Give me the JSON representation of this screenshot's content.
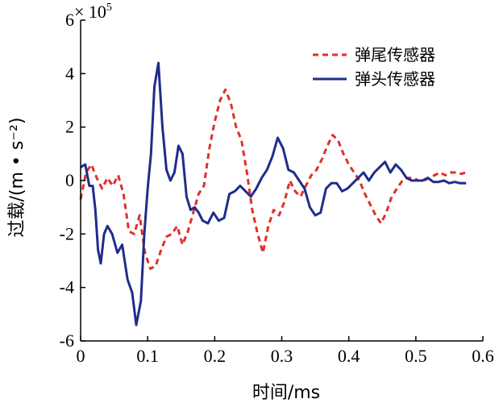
{
  "chart_data": {
    "type": "line",
    "xlabel": "时间/ms",
    "ylabel": "过载/(m • s⁻²)",
    "y_multiplier": "× 10",
    "y_multiplier_exp": "5",
    "xlim": [
      0,
      0.6
    ],
    "ylim": [
      -6,
      6
    ],
    "x_ticks": [
      "0",
      "0.1",
      "0.2",
      "0.3",
      "0.4",
      "0.5",
      "0.6"
    ],
    "y_ticks": [
      "6",
      "4",
      "2",
      "0",
      "-2",
      "-4",
      "-6"
    ],
    "grid": false,
    "legend_position": "top-right",
    "series": [
      {
        "name": "弹尾传感器",
        "color": "#e0302a",
        "dash": "dashed",
        "x": [
          0,
          0.008,
          0.016,
          0.024,
          0.032,
          0.04,
          0.048,
          0.056,
          0.064,
          0.072,
          0.08,
          0.088,
          0.096,
          0.104,
          0.112,
          0.12,
          0.128,
          0.136,
          0.144,
          0.152,
          0.16,
          0.168,
          0.176,
          0.184,
          0.192,
          0.2,
          0.208,
          0.216,
          0.224,
          0.232,
          0.24,
          0.248,
          0.256,
          0.264,
          0.272,
          0.28,
          0.288,
          0.296,
          0.304,
          0.312,
          0.32,
          0.328,
          0.336,
          0.344,
          0.352,
          0.36,
          0.368,
          0.376,
          0.384,
          0.392,
          0.4,
          0.408,
          0.416,
          0.424,
          0.432,
          0.44,
          0.448,
          0.456,
          0.464,
          0.472,
          0.48,
          0.488,
          0.496,
          0.504,
          0.512,
          0.52,
          0.528,
          0.536,
          0.544,
          0.552,
          0.56,
          0.568,
          0.575
        ],
        "y": [
          -0.7,
          0.3,
          0.6,
          0.1,
          -0.3,
          0.1,
          -0.2,
          0.2,
          -0.5,
          -1.9,
          -2.0,
          -1.3,
          -2.7,
          -3.3,
          -3.2,
          -2.6,
          -2.1,
          -2.0,
          -1.7,
          -2.4,
          -1.9,
          -1.2,
          -0.5,
          -0.2,
          1.2,
          2.2,
          3.0,
          3.4,
          2.9,
          2.0,
          1.5,
          0.3,
          -1.1,
          -2.0,
          -2.7,
          -1.7,
          -1.1,
          -1.3,
          -0.8,
          0.0,
          -0.4,
          -0.6,
          -0.2,
          0.2,
          0.4,
          0.8,
          1.3,
          1.7,
          1.5,
          1.0,
          0.6,
          0.3,
          0.0,
          -0.5,
          -0.9,
          -1.3,
          -1.6,
          -1.2,
          -0.6,
          -0.3,
          0.0,
          0.1,
          0.1,
          0.0,
          0.0,
          0.1,
          0.2,
          0.3,
          0.2,
          0.3,
          0.3,
          0.25,
          0.3
        ]
      },
      {
        "name": "弹头传感器",
        "color": "#1f2d8a",
        "dash": "solid",
        "x": [
          0,
          0.007,
          0.013,
          0.018,
          0.022,
          0.026,
          0.03,
          0.035,
          0.04,
          0.047,
          0.055,
          0.062,
          0.07,
          0.077,
          0.083,
          0.09,
          0.095,
          0.1,
          0.105,
          0.11,
          0.116,
          0.122,
          0.128,
          0.134,
          0.14,
          0.146,
          0.152,
          0.158,
          0.164,
          0.17,
          0.176,
          0.182,
          0.19,
          0.198,
          0.206,
          0.214,
          0.222,
          0.23,
          0.238,
          0.246,
          0.254,
          0.262,
          0.27,
          0.278,
          0.286,
          0.294,
          0.302,
          0.31,
          0.318,
          0.326,
          0.334,
          0.342,
          0.35,
          0.358,
          0.366,
          0.374,
          0.382,
          0.39,
          0.398,
          0.406,
          0.414,
          0.422,
          0.43,
          0.438,
          0.446,
          0.454,
          0.462,
          0.47,
          0.478,
          0.486,
          0.494,
          0.502,
          0.51,
          0.518,
          0.526,
          0.534,
          0.542,
          0.55,
          0.558,
          0.566,
          0.575
        ],
        "y": [
          0.5,
          0.6,
          -0.2,
          -0.2,
          -1.1,
          -2.6,
          -3.1,
          -2.0,
          -1.7,
          -2.0,
          -2.7,
          -2.4,
          -3.7,
          -4.2,
          -5.4,
          -4.5,
          -2.0,
          -0.3,
          1.0,
          3.5,
          4.4,
          2.0,
          0.4,
          0.0,
          0.3,
          1.3,
          1.0,
          -0.6,
          -1.1,
          -1.0,
          -1.2,
          -1.5,
          -1.6,
          -1.2,
          -1.5,
          -1.4,
          -0.5,
          -0.4,
          -0.2,
          -0.4,
          -0.6,
          -0.3,
          0.1,
          0.4,
          0.9,
          1.6,
          1.2,
          0.4,
          0.3,
          0.0,
          -0.3,
          -1.0,
          -1.3,
          -1.2,
          -0.3,
          -0.1,
          -0.1,
          -0.4,
          -0.3,
          -0.1,
          0.1,
          0.3,
          0.0,
          0.3,
          0.5,
          0.7,
          0.3,
          0.6,
          0.4,
          0.1,
          0.0,
          0.0,
          0.0,
          0.1,
          -0.05,
          -0.05,
          0.0,
          -0.1,
          -0.05,
          -0.1,
          -0.1
        ]
      }
    ]
  }
}
